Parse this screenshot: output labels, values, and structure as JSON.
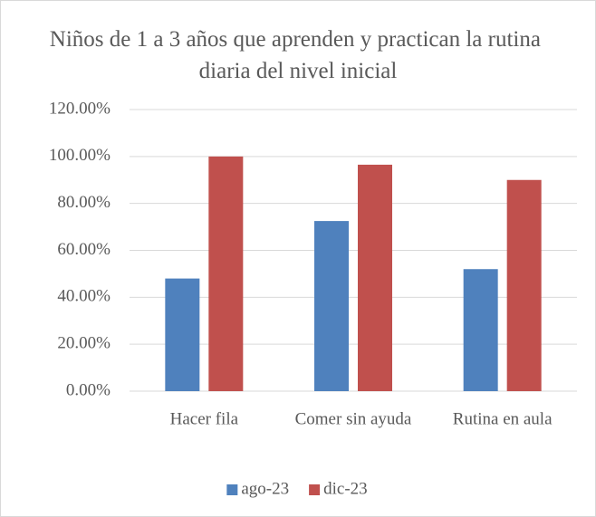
{
  "chart_data": {
    "type": "bar",
    "title": "Niños de 1 a 3 años que aprenden y practican la rutina diaria del nivel inicial",
    "categories": [
      "Hacer fila",
      "Comer sin ayuda",
      "Rutina en aula"
    ],
    "series": [
      {
        "name": "ago-23",
        "color": "#4f81bd",
        "values": [
          48,
          72.5,
          52
        ]
      },
      {
        "name": "dic-23",
        "color": "#c0504d",
        "values": [
          100,
          96.5,
          90
        ]
      }
    ],
    "ylim": [
      0,
      120
    ],
    "yticks": [
      {
        "value": 0,
        "label": "0.00%"
      },
      {
        "value": 20,
        "label": "20.00%"
      },
      {
        "value": 40,
        "label": "40.00%"
      },
      {
        "value": 60,
        "label": "60.00%"
      },
      {
        "value": 80,
        "label": "80.00%"
      },
      {
        "value": 100,
        "label": "100.00%"
      },
      {
        "value": 120,
        "label": "120.00%"
      }
    ],
    "grid": true,
    "legend": "bottom"
  }
}
